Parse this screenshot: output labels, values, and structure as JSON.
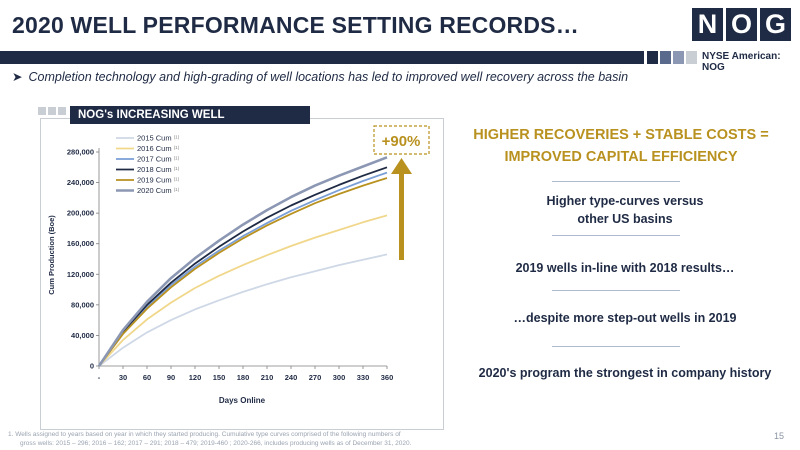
{
  "header": {
    "title": "2020 WELL PERFORMANCE SETTING RECORDS…",
    "logo_letters": [
      "N",
      "O",
      "G"
    ],
    "exchange": "NYSE American: NOG"
  },
  "bullet": "Completion technology and high-grading of well locations has led to improved well recovery across the basin",
  "panel": {
    "title": "NOG's INCREASING WELL PRODUCTIVITY"
  },
  "chart_data": {
    "type": "line",
    "xlabel": "Days Online",
    "ylabel": "Cum Production (Boe)",
    "x_tick_labels": [
      "-",
      "30",
      "60",
      "90",
      "120",
      "150",
      "180",
      "210",
      "240",
      "270",
      "300",
      "330",
      "360"
    ],
    "y_tick_labels": [
      "0",
      "40,000",
      "80,000",
      "120,000",
      "160,000",
      "200,000",
      "240,000",
      "280,000"
    ],
    "xlim": [
      0,
      360
    ],
    "ylim": [
      0,
      280000
    ],
    "x": [
      0,
      30,
      60,
      90,
      120,
      150,
      180,
      210,
      240,
      270,
      300,
      330,
      360
    ],
    "series": [
      {
        "name": "2015 Cum",
        "legend_suffix": "(1)",
        "color": "#cfd8e6",
        "values": [
          0,
          24000,
          44000,
          60000,
          74000,
          86000,
          97000,
          107000,
          116000,
          124000,
          132000,
          139000,
          146000
        ]
      },
      {
        "name": "2016 Cum",
        "legend_suffix": "(1)",
        "color": "#f0d78a",
        "values": [
          0,
          34000,
          61000,
          83000,
          102000,
          118000,
          132000,
          145000,
          157000,
          168000,
          178000,
          188000,
          197000
        ]
      },
      {
        "name": "2017 Cum",
        "legend_suffix": "(1)",
        "color": "#7a9ed6",
        "values": [
          0,
          44000,
          78000,
          106000,
          130000,
          151000,
          170000,
          187000,
          203000,
          217000,
          230000,
          242000,
          253000
        ]
      },
      {
        "name": "2018 Cum",
        "legend_suffix": "(1)",
        "color": "#1f2a44",
        "values": [
          0,
          45000,
          80000,
          109000,
          134000,
          156000,
          176000,
          194000,
          210000,
          224000,
          237000,
          249000,
          260000
        ]
      },
      {
        "name": "2019 Cum",
        "legend_suffix": "(1)",
        "color": "#b8911f",
        "values": [
          0,
          42000,
          75000,
          103000,
          127000,
          148000,
          167000,
          184000,
          199000,
          213000,
          225000,
          236000,
          246000
        ]
      },
      {
        "name": "2020 Cum",
        "legend_suffix": "(1)",
        "color": "#8b97b3",
        "values": [
          0,
          47000,
          84000,
          115000,
          141000,
          164000,
          185000,
          204000,
          221000,
          236000,
          249000,
          261000,
          273000
        ]
      }
    ],
    "annotation": "+90%",
    "grid": false,
    "legend_position": "top-left"
  },
  "right": {
    "heading_line1": "HIGHER RECOVERIES + STABLE COSTS =",
    "heading_line2": "IMPROVED CAPITAL EFFICIENCY",
    "stmt1_line1": "Higher type-curves versus",
    "stmt1_line2": "other US basins",
    "stmt2": "2019 wells in-line with 2018 results…",
    "stmt3": "…despite more step-out wells in 2019",
    "stmt4": "2020's program the strongest in company history"
  },
  "footnote": {
    "line1": "1.     Wells assigned to years based on year in which they started producing. Cumulative type curves comprised of the following numbers of",
    "line2": "gross wells: 2015 – 296; 2016 – 162; 2017 – 291; 2018 – 479; 2019-460 ; 2020-266, includes producing wells as of December 31, 2020."
  },
  "page_number": "15",
  "colors": {
    "navy": "#1f2a44",
    "gold": "#b8911f",
    "square_gray": "#8b97b3"
  }
}
